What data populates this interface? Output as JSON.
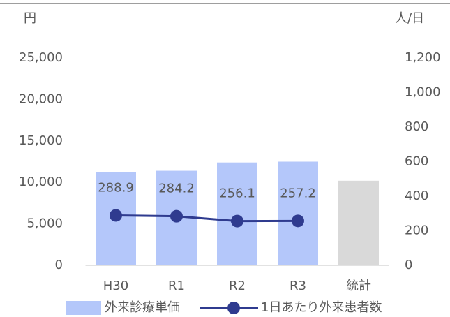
{
  "chart_data": {
    "type": "bar",
    "y_unit": "円",
    "y2_unit": "人/日",
    "categories": [
      "H30",
      "R1",
      "R2",
      "R3",
      "統計"
    ],
    "series": [
      {
        "name": "外来診療単価",
        "type": "bar",
        "color": "#b4c7fa",
        "colors": [
          "#b4c7fa",
          "#b4c7fa",
          "#b4c7fa",
          "#b4c7fa",
          "#d9d9d9"
        ],
        "values": [
          11200,
          11400,
          12400,
          12500,
          10200
        ]
      },
      {
        "name": "1日あたり外来患者数",
        "type": "line",
        "axis": "y2",
        "color": "#2f3b8f",
        "values": [
          288.9,
          284.2,
          256.1,
          257.2,
          null
        ]
      }
    ],
    "ylim": [
      0,
      25000
    ],
    "yticks": [
      0,
      {
        "value": 5000,
        "label": "5,000"
      },
      {
        "value": 10000,
        "label": "10,000"
      },
      {
        "value": 15000,
        "label": "15,000"
      },
      {
        "value": 20000,
        "label": "20,000"
      },
      {
        "value": 25000,
        "label": "25,000"
      }
    ],
    "y2lim": [
      0,
      1200
    ],
    "y2ticks": [
      0,
      200,
      400,
      600,
      800,
      {
        "value": 1000,
        "label": "1,000"
      },
      {
        "value": 1200,
        "label": "1,200"
      }
    ]
  }
}
